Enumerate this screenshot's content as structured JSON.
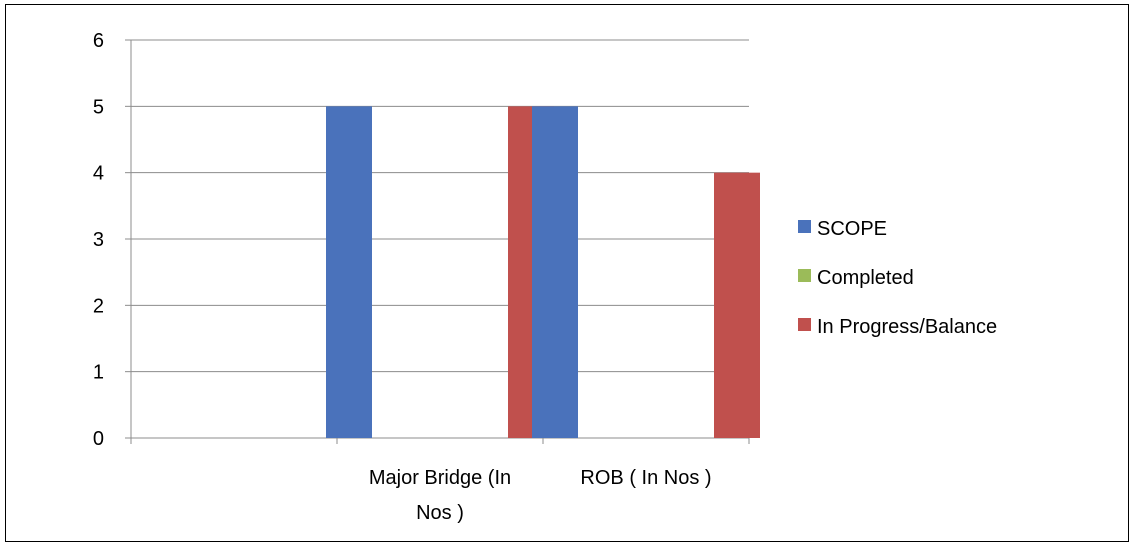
{
  "chart_data": {
    "type": "bar",
    "categories": [
      "",
      "Major Bridge (In|Nos )",
      "ROB ( In Nos )"
    ],
    "series": [
      {
        "name": "SCOPE",
        "color": "#4a72bb",
        "values": [
          null,
          5,
          5
        ]
      },
      {
        "name": "Completed",
        "color": "#9bbb59",
        "values": [
          null,
          0,
          0
        ]
      },
      {
        "name": "In Progress/Balance",
        "color": "#c0504d",
        "values": [
          null,
          5,
          4
        ]
      }
    ],
    "ylim": [
      0,
      6
    ],
    "yticks": [
      0,
      1,
      2,
      3,
      4,
      5,
      6
    ],
    "grid": true,
    "legend_position": "right",
    "title": "",
    "xlabel": "",
    "ylabel": ""
  }
}
